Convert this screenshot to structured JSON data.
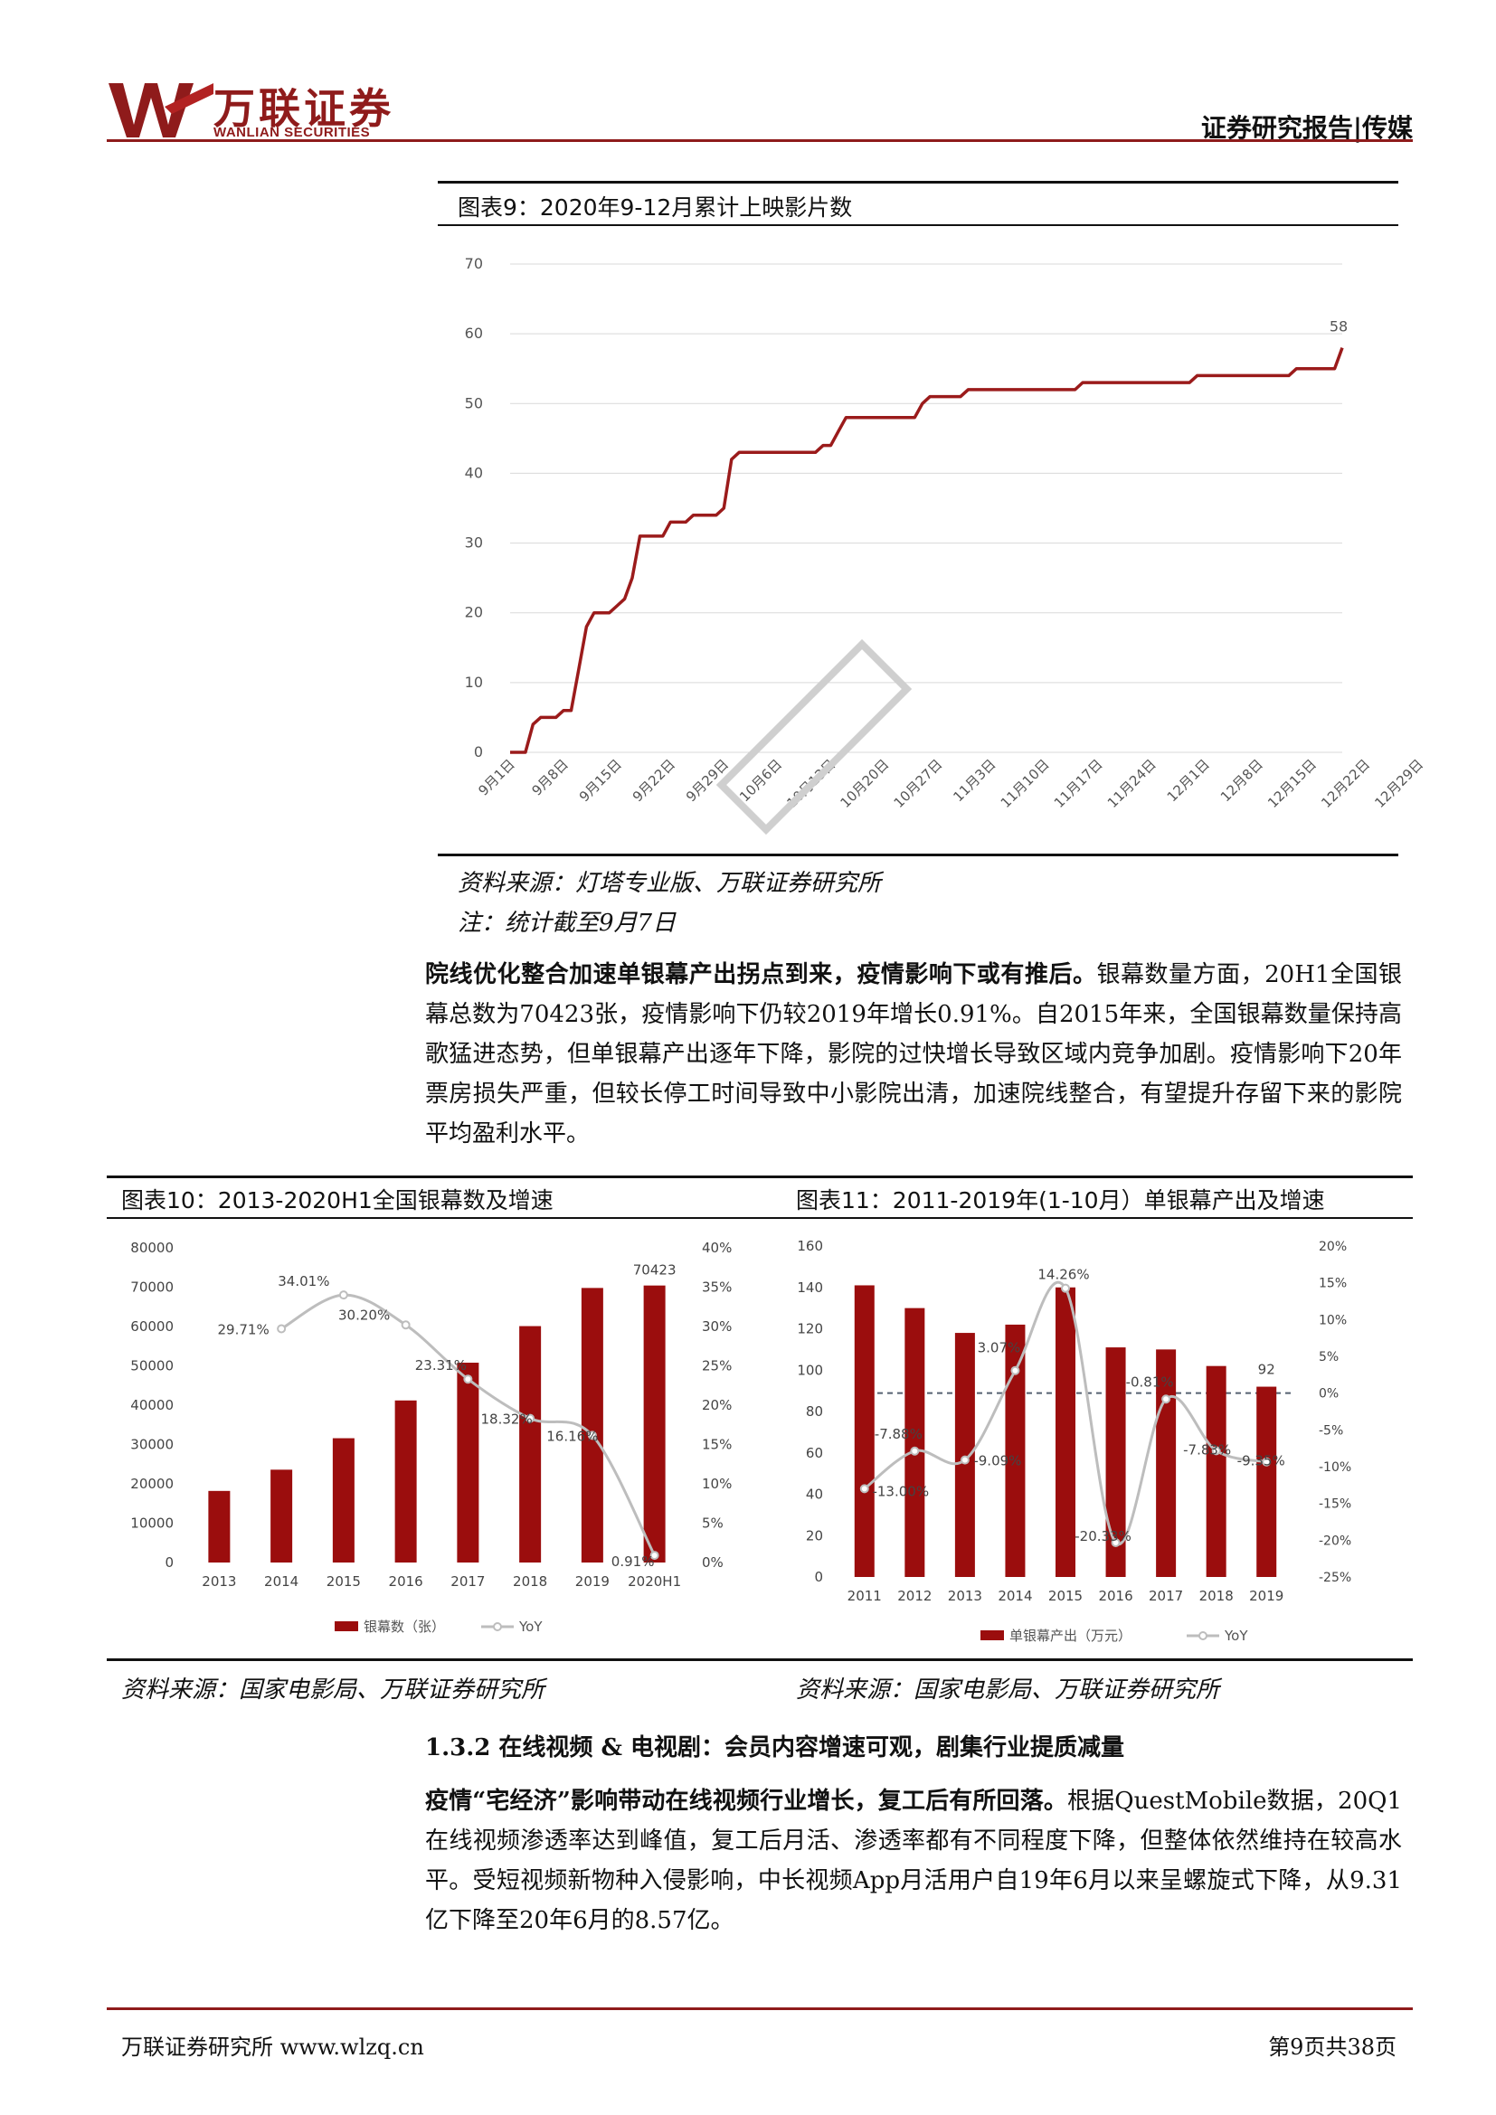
{
  "header": {
    "logo_cn": "万联证券",
    "logo_en": "WANLIAN SECURITIES",
    "report_type": "证券研究报告|传媒",
    "brand_color": "#8f1b1b"
  },
  "fig9": {
    "title": "图表9：2020年9-12月累计上映影片数",
    "source": "资料来源：灯塔专业版、万联证券研究所",
    "note": "注：统计截至9月7日",
    "chart_data": {
      "type": "line",
      "ylim": [
        0,
        70
      ],
      "yticks": [
        0,
        10,
        20,
        30,
        40,
        50,
        60,
        70
      ],
      "xtick_labels": [
        "9月1日",
        "9月8日",
        "9月15日",
        "9月22日",
        "9月29日",
        "10月6日",
        "10月13日",
        "10月20日",
        "10月27日",
        "11月3日",
        "11月10日",
        "11月17日",
        "11月24日",
        "12月1日",
        "12月8日",
        "12月15日",
        "12月22日",
        "12月29日"
      ],
      "end_label": "58",
      "color": "#9b1b1b",
      "points": [
        [
          0,
          0
        ],
        [
          2,
          0
        ],
        [
          3,
          4
        ],
        [
          4,
          5
        ],
        [
          6,
          5
        ],
        [
          7,
          6
        ],
        [
          8,
          6
        ],
        [
          9,
          12
        ],
        [
          10,
          18
        ],
        [
          11,
          20
        ],
        [
          13,
          20
        ],
        [
          14,
          21
        ],
        [
          15,
          22
        ],
        [
          16,
          25
        ],
        [
          17,
          31
        ],
        [
          19,
          31
        ],
        [
          20,
          31
        ],
        [
          21,
          33
        ],
        [
          23,
          33
        ],
        [
          24,
          34
        ],
        [
          27,
          34
        ],
        [
          28,
          35
        ],
        [
          29,
          42
        ],
        [
          30,
          43
        ],
        [
          40,
          43
        ],
        [
          41,
          44
        ],
        [
          42,
          44
        ],
        [
          43,
          46
        ],
        [
          44,
          48
        ],
        [
          53,
          48
        ],
        [
          54,
          50
        ],
        [
          55,
          51
        ],
        [
          59,
          51
        ],
        [
          60,
          52
        ],
        [
          74,
          52
        ],
        [
          75,
          53
        ],
        [
          89,
          53
        ],
        [
          90,
          54
        ],
        [
          102,
          54
        ],
        [
          103,
          55
        ],
        [
          108,
          55
        ],
        [
          109,
          58
        ]
      ]
    }
  },
  "para1": {
    "bold": "院线优化整合加速单银幕产出拐点到来，疫情影响下或有推后。",
    "rest": "银幕数量方面，20H1全国银幕总数为70423张，疫情影响下仍较2019年增长0.91%。自2015年来，全国银幕数量保持高歌猛进态势，但单银幕产出逐年下降，影院的过快增长导致区域内竞争加剧。疫情影响下20年票房损失严重，但较长停工时间导致中小影院出清，加速院线整合，有望提升存留下来的影院平均盈利水平。"
  },
  "fig10": {
    "title": "图表10：2013-2020H1全国银幕数及增速",
    "source": "资料来源：国家电影局、万联证券研究所",
    "legend_bar": "银幕数（张）",
    "legend_line": "YoY",
    "chart_data": {
      "type": "bar",
      "categories": [
        "2013",
        "2014",
        "2015",
        "2016",
        "2017",
        "2018",
        "2019",
        "2020H1"
      ],
      "series": [
        {
          "name": "银幕数（张）",
          "values": [
            18200,
            23600,
            31600,
            41200,
            50800,
            60100,
            69800,
            70423
          ],
          "color": "#9b0d0d"
        },
        {
          "name": "YoY",
          "values": [
            null,
            29.71,
            34.01,
            30.2,
            23.31,
            18.32,
            16.16,
            0.91
          ],
          "color": "#b9b9b9"
        }
      ],
      "ylim_left": [
        0,
        80000
      ],
      "yticks_left": [
        0,
        10000,
        20000,
        30000,
        40000,
        50000,
        60000,
        70000,
        80000
      ],
      "ylim_right": [
        0,
        40
      ],
      "yticks_right": [
        "0%",
        "5%",
        "10%",
        "15%",
        "20%",
        "25%",
        "30%",
        "35%",
        "40%"
      ],
      "data_labels": [
        "29.71%",
        "34.01%",
        "30.20%",
        "23.31%",
        "18.32%",
        "16.16%",
        "0.91%"
      ],
      "top_label": "70423"
    }
  },
  "fig11": {
    "title": "图表11：2011-2019年(1-10月）单银幕产出及增速",
    "source": "资料来源：国家电影局、万联证券研究所",
    "legend_bar": "单银幕产出（万元）",
    "legend_line": "YoY",
    "chart_data": {
      "type": "bar",
      "categories": [
        "2011",
        "2012",
        "2013",
        "2014",
        "2015",
        "2016",
        "2017",
        "2018",
        "2019"
      ],
      "series": [
        {
          "name": "单银幕产出（万元）",
          "values": [
            141,
            130,
            118,
            122,
            140,
            111,
            110,
            102,
            92
          ],
          "color": "#9b0d0d"
        },
        {
          "name": "YoY",
          "values": [
            -13.0,
            -7.88,
            -9.09,
            3.07,
            14.26,
            -20.33,
            -0.81,
            -7.83,
            -9.35
          ],
          "color": "#b9b9b9"
        }
      ],
      "ylim_left": [
        0,
        160
      ],
      "yticks_left": [
        0,
        20,
        40,
        60,
        80,
        100,
        120,
        140,
        160
      ],
      "ylim_right": [
        -25,
        20
      ],
      "yticks_right": [
        "-25%",
        "-20%",
        "-15%",
        "-10%",
        "-5%",
        "0%",
        "5%",
        "10%",
        "15%",
        "20%"
      ],
      "data_labels": [
        "-13.00%",
        "-7.88%",
        "-9.09%",
        "3.07%",
        "14.26%",
        "-20.33%",
        "-0.81%",
        "-7.83%",
        "-9.35%"
      ],
      "end_label": "92"
    }
  },
  "section": {
    "heading": "1.3.2 在线视频 & 电视剧：会员内容增速可观，剧集行业提质减量"
  },
  "para2": {
    "bold": "疫情“宅经济”影响带动在线视频行业增长，复工后有所回落。",
    "rest": "根据QuestMobile数据，20Q1在线视频渗透率达到峰值，复工后月活、渗透率都有不同程度下降，但整体依然维持在较高水平。受短视频新物种入侵影响，中长视频App月活用户自19年6月以来呈螺旋式下降，从9.31亿下降至20年6月的8.57亿。"
  },
  "footer": {
    "left": "万联证券研究所 www.wlzq.cn",
    "right": "第9页共38页"
  }
}
